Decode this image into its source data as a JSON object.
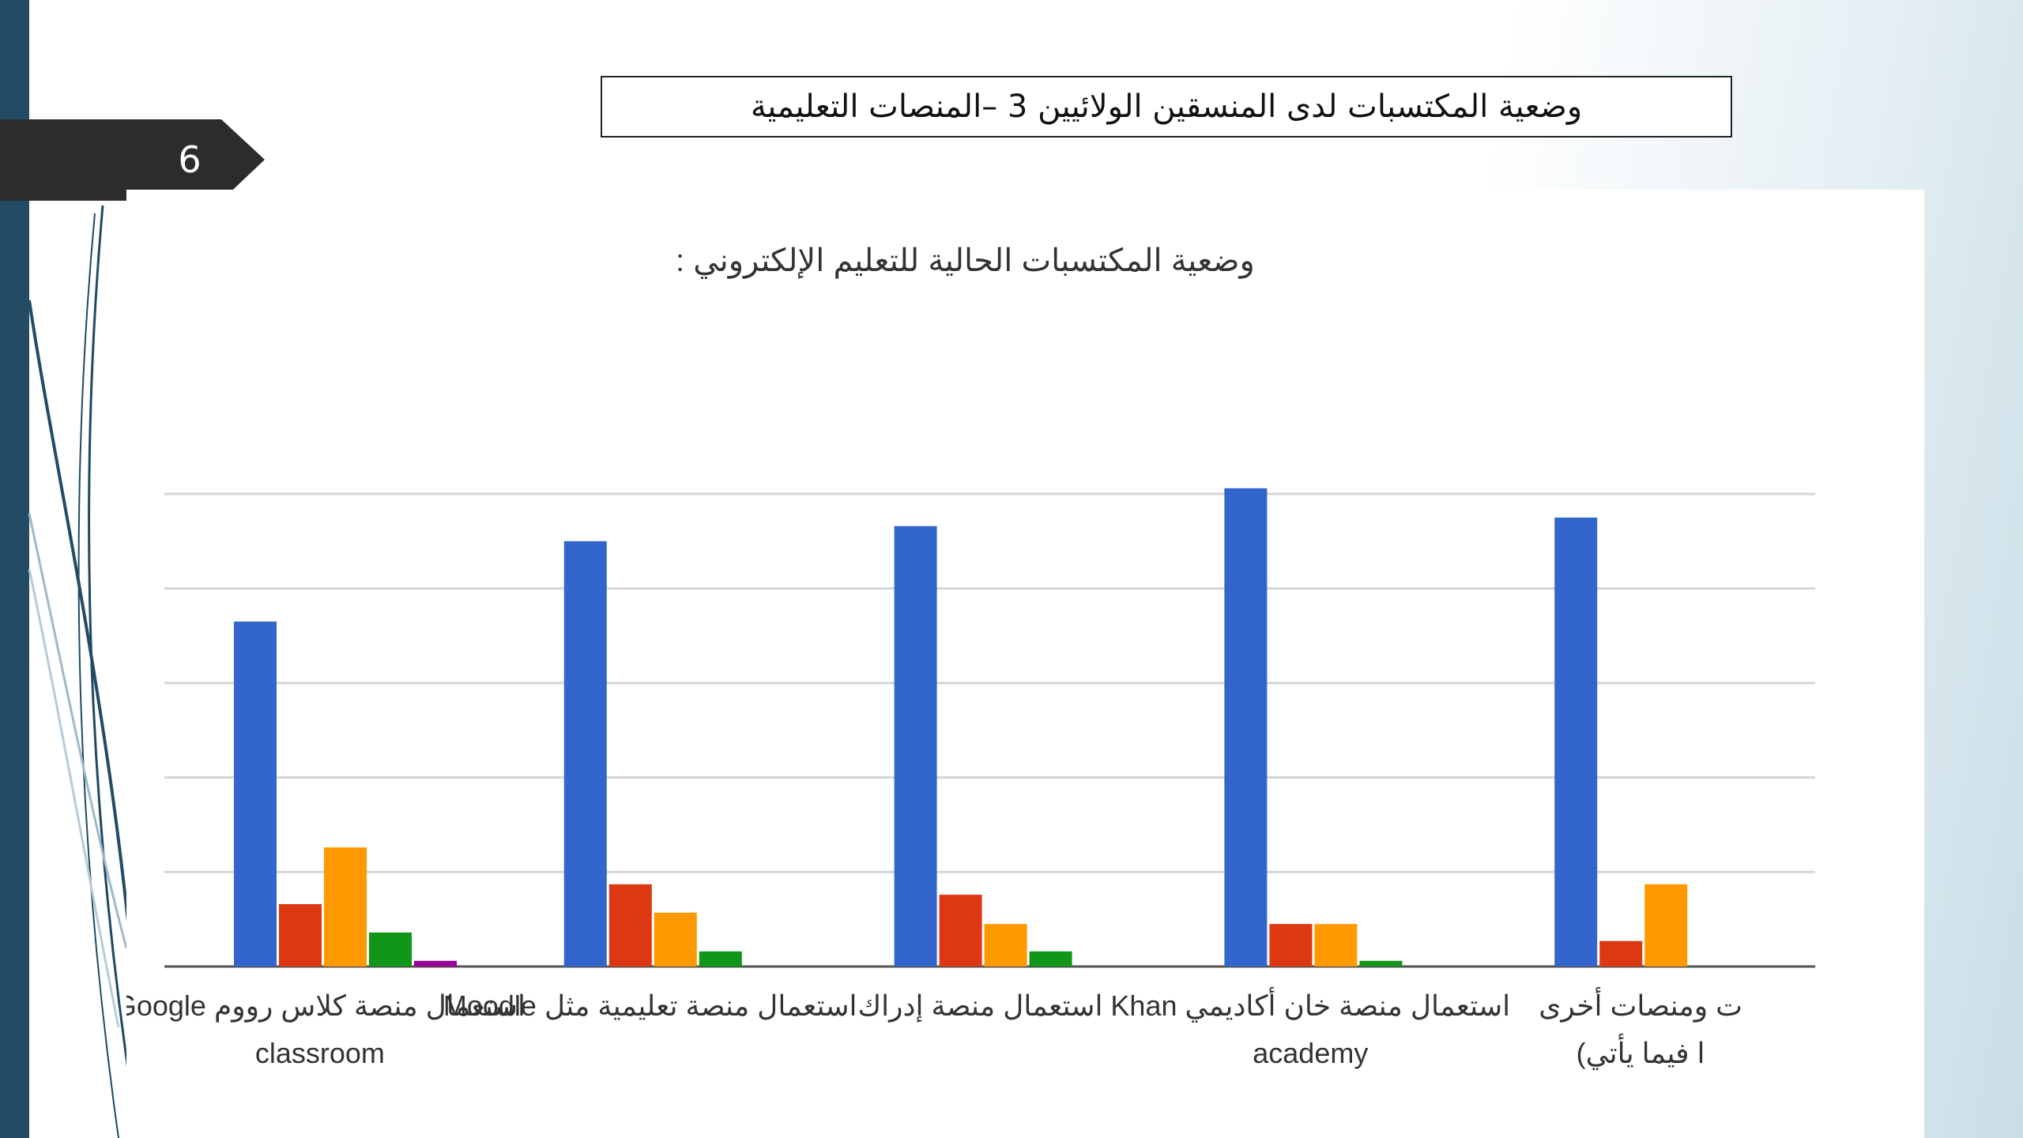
{
  "slide": {
    "number": "6",
    "title": "وضعية المكتسبات لدى المنسقين الولائيين  3 –المنصات التعليمية"
  },
  "chart_data": {
    "type": "bar",
    "title": "وضعية المكتسبات الحالية للتعليم الإلكتروني :",
    "xlabel": "",
    "ylabel": "",
    "ylim": [
      0,
      50
    ],
    "grid": true,
    "legend": "none",
    "categories": [
      [
        "استعمال منصة كلاس رووم Google",
        "classroom"
      ],
      [
        "استعمال منصة تعليمية مثل Moodle"
      ],
      [
        "استعمال منصة إدراك"
      ],
      [
        "استعمال منصة خان أكاديمي Khan",
        "academy"
      ],
      [
        "ت ومنصات أخرى",
        "ا فيما يأتي)"
      ]
    ],
    "series": [
      {
        "color": "#3366cc",
        "values": [
          36.5,
          45,
          46.6,
          50.6,
          47.5
        ]
      },
      {
        "color": "#dc3912",
        "values": [
          6.6,
          8.7,
          7.6,
          4.5,
          2.7
        ]
      },
      {
        "color": "#ff9900",
        "values": [
          12.6,
          5.7,
          4.5,
          4.5,
          8.7
        ]
      },
      {
        "color": "#109618",
        "values": [
          3.6,
          1.6,
          1.6,
          0.6,
          0
        ]
      },
      {
        "color": "#990099",
        "values": [
          0.6,
          0,
          0,
          0,
          0
        ]
      }
    ]
  }
}
